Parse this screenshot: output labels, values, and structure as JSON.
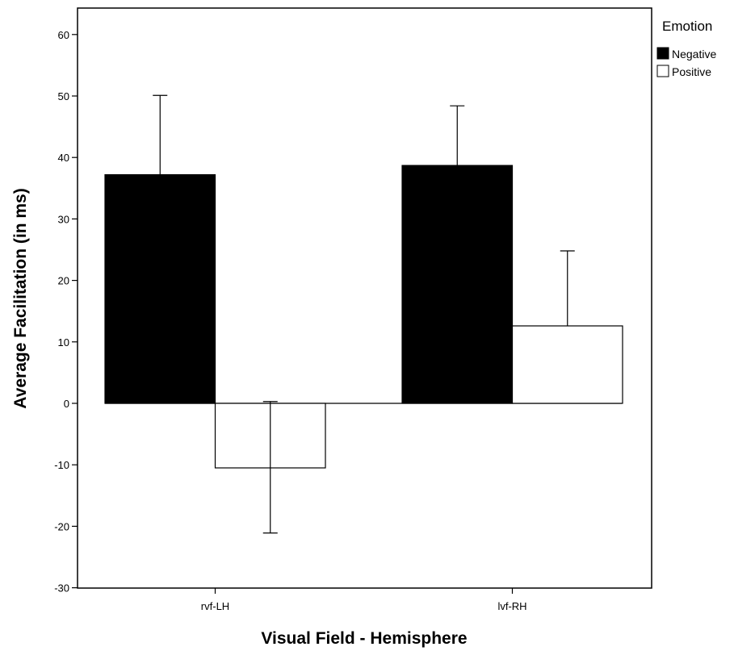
{
  "chart_data": {
    "type": "bar",
    "title": "",
    "xlabel": "Visual Field - Hemisphere",
    "ylabel": "Average Facilitation (in ms)",
    "categories": [
      "rvf-LH",
      "lvf-RH"
    ],
    "ylim": [
      -30,
      65
    ],
    "yticks": [
      -30,
      -20,
      -10,
      0,
      10,
      20,
      30,
      40,
      50,
      60
    ],
    "grid": false,
    "legend": {
      "title": "Emotion",
      "placement": "right"
    },
    "series": [
      {
        "name": "Negative",
        "color": "#000000",
        "values": [
          37.2,
          38.7
        ],
        "error_upper": [
          50.1,
          48.4
        ]
      },
      {
        "name": "Positive",
        "color": "#ffffff",
        "values": [
          -10.5,
          12.6
        ],
        "error_upper": [
          0.3,
          24.8
        ],
        "error_lower": [
          -21.1,
          null
        ]
      }
    ]
  }
}
